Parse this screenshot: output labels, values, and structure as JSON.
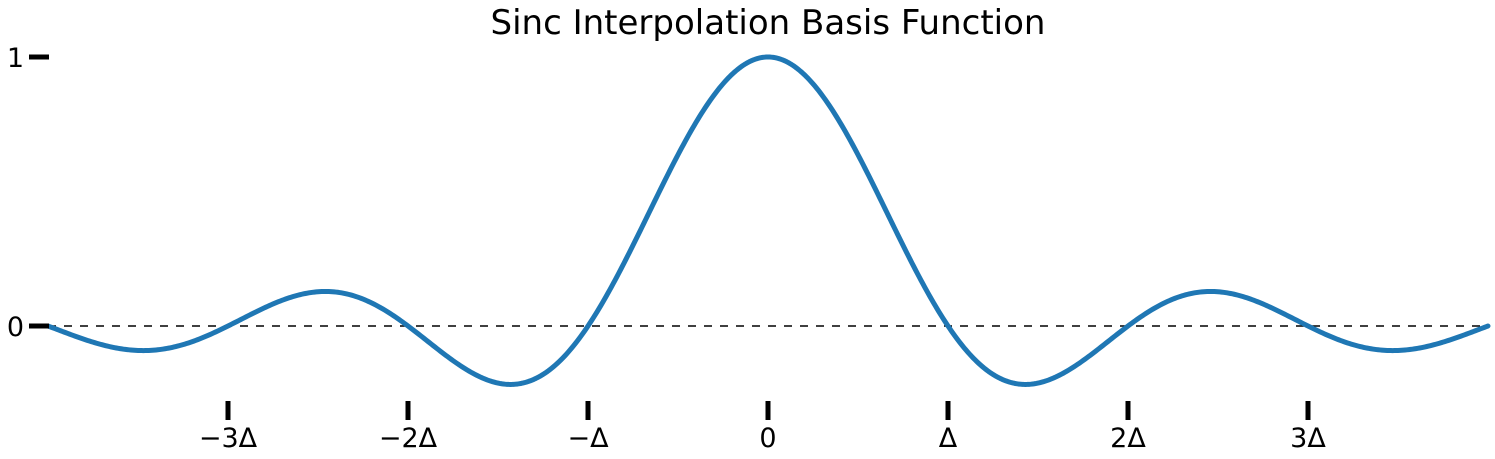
{
  "chart_data": {
    "type": "line",
    "title": "Sinc Interpolation Basis Function",
    "xlabel": "",
    "ylabel": "",
    "xlim": [
      -4,
      4
    ],
    "ylim": [
      -0.3,
      1
    ],
    "function": "sinc(x) = sin(pi*x)/(pi*x)",
    "x_ticks": [
      {
        "value": -3,
        "label": "−3Δ"
      },
      {
        "value": -2,
        "label": "−2Δ"
      },
      {
        "value": -1,
        "label": "−Δ"
      },
      {
        "value": 0,
        "label": "0"
      },
      {
        "value": 1,
        "label": "Δ"
      },
      {
        "value": 2,
        "label": "2Δ"
      },
      {
        "value": 3,
        "label": "3Δ"
      }
    ],
    "y_ticks": [
      {
        "value": 0,
        "label": "0"
      },
      {
        "value": 1,
        "label": "1"
      }
    ],
    "reference_line": {
      "y": 0,
      "style": "dashed"
    },
    "series": [
      {
        "color": "#1f77b4",
        "x": [
          -4,
          -3.5,
          -3,
          -2.5,
          -2,
          -1.5,
          -1,
          -0.5,
          0,
          0.5,
          1,
          1.5,
          2,
          2.5,
          3,
          3.5,
          4
        ],
        "values": [
          0,
          -0.091,
          0,
          0.127,
          0,
          -0.212,
          0,
          0.637,
          1,
          0.637,
          0,
          -0.212,
          0,
          0.127,
          0,
          -0.091,
          0
        ]
      }
    ],
    "grid": false,
    "legend": "none"
  }
}
